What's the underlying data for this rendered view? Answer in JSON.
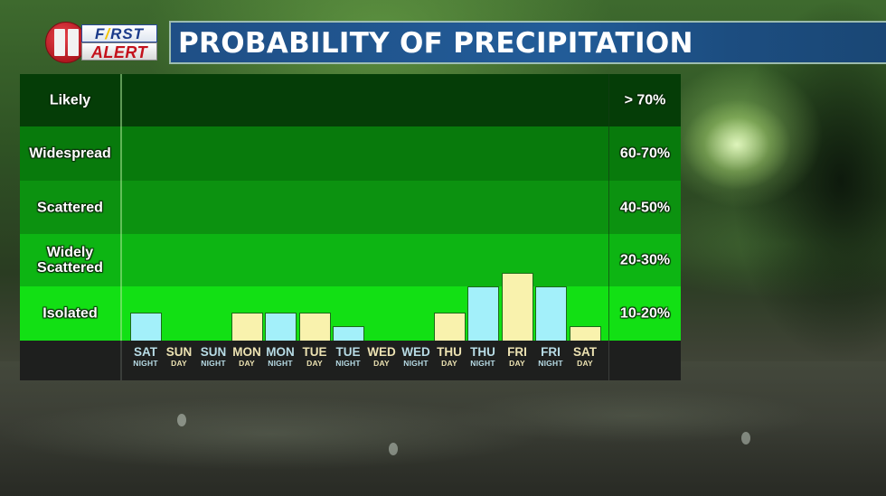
{
  "logo": {
    "number": "11",
    "line1": "FIRST",
    "line2": "ALERT"
  },
  "title": "PROBABILITY OF PRECIPITATION",
  "colors": {
    "title_bar": "#225c98",
    "band_likely": "#053d07",
    "band_widespread": "#087a0c",
    "band_scattered": "#0c9210",
    "band_widely_scattered": "#0db513",
    "band_isolated": "#12e014",
    "bar_day": "#f9f2ad",
    "bar_night": "#a3f0fa",
    "label_row": "#1e1f1e"
  },
  "bands": [
    {
      "label": "Likely",
      "range": "> 70%"
    },
    {
      "label": "Widespread",
      "range": "60-70%"
    },
    {
      "label": "Scattered",
      "range": "40-50%"
    },
    {
      "label": "Widely Scattered",
      "range": "20-30%"
    },
    {
      "label": "Isolated",
      "range": "10-20%"
    }
  ],
  "periods": [
    {
      "day": "SAT",
      "part": "NIGHT"
    },
    {
      "day": "SUN",
      "part": "DAY"
    },
    {
      "day": "SUN",
      "part": "NIGHT"
    },
    {
      "day": "MON",
      "part": "DAY"
    },
    {
      "day": "MON",
      "part": "NIGHT"
    },
    {
      "day": "TUE",
      "part": "DAY"
    },
    {
      "day": "TUE",
      "part": "NIGHT"
    },
    {
      "day": "WED",
      "part": "DAY"
    },
    {
      "day": "WED",
      "part": "NIGHT"
    },
    {
      "day": "THU",
      "part": "DAY"
    },
    {
      "day": "THU",
      "part": "NIGHT"
    },
    {
      "day": "FRI",
      "part": "DAY"
    },
    {
      "day": "FRI",
      "part": "NIGHT"
    },
    {
      "day": "SAT",
      "part": "DAY"
    }
  ],
  "chart_data": {
    "type": "bar",
    "title": "PROBABILITY OF PRECIPITATION",
    "xlabel": "",
    "ylabel": "",
    "categories": [
      "SAT NIGHT",
      "SUN DAY",
      "SUN NIGHT",
      "MON DAY",
      "MON NIGHT",
      "TUE DAY",
      "TUE NIGHT",
      "WED DAY",
      "WED NIGHT",
      "THU DAY",
      "THU NIGHT",
      "FRI DAY",
      "FRI NIGHT",
      "SAT DAY"
    ],
    "values": [
      15,
      0,
      0,
      15,
      15,
      15,
      10,
      0,
      0,
      15,
      20,
      25,
      20,
      10
    ],
    "units": "% chance",
    "y_bands": [
      {
        "label": "Isolated",
        "range": "10-20%"
      },
      {
        "label": "Widely Scattered",
        "range": "20-30%"
      },
      {
        "label": "Scattered",
        "range": "40-50%"
      },
      {
        "label": "Widespread",
        "range": "60-70%"
      },
      {
        "label": "Likely",
        "range": "> 70%"
      }
    ],
    "bar_color_rule": {
      "DAY": "#f9f2ad",
      "NIGHT": "#a3f0fa"
    },
    "grid": false,
    "legend": "none"
  }
}
